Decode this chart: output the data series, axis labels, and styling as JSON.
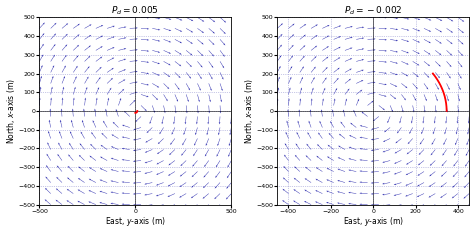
{
  "left": {
    "title": "$P_d = 0.005$",
    "xlim": [
      -500,
      500
    ],
    "ylim": [
      -500,
      500
    ],
    "xticks": [
      -500,
      0,
      500
    ],
    "yticks": [
      -500,
      -400,
      -300,
      -200,
      -100,
      0,
      100,
      200,
      300,
      400,
      500
    ],
    "xlabel": "East, $y$-axis (m)",
    "ylabel": "North, $x$-axis (m)",
    "pd": 0.005,
    "grid_color": "#8888cc",
    "arrow_color": "#2222aa",
    "curve_color": "red"
  },
  "right": {
    "title": "$P_d = -0.002$",
    "xlim": [
      -450,
      450
    ],
    "ylim": [
      -500,
      500
    ],
    "xticks": [
      -400,
      -200,
      0,
      200,
      400
    ],
    "yticks": [
      -500,
      -400,
      -300,
      -200,
      -100,
      0,
      100,
      200,
      300,
      400,
      500
    ],
    "xlabel": "East, $y$-axis (m)",
    "ylabel": "North, $x$-axis (m)",
    "pd": -0.002,
    "grid_color": "#8888cc",
    "arrow_color": "#2222aa",
    "curve_color": "red"
  },
  "n_grid": 18,
  "background_color": "#ffffff",
  "fig_width": 4.74,
  "fig_height": 2.33,
  "dpi": 100
}
